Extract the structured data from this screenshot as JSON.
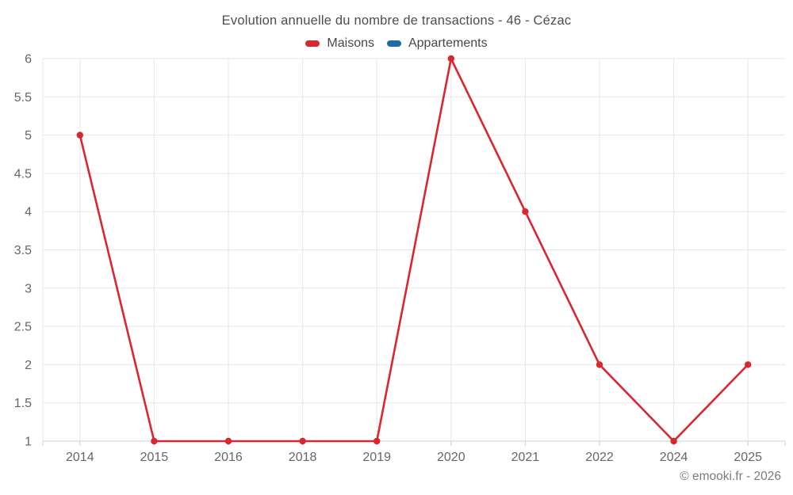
{
  "title": "Evolution annuelle du nombre de transactions - 46 - Cézac",
  "legend": [
    {
      "label": "Maisons",
      "color": "#d8272e"
    },
    {
      "label": "Appartements",
      "color": "#1c6ca5"
    }
  ],
  "footer": "© emooki.fr - 2026",
  "chart_data": {
    "type": "line",
    "categories": [
      "2014",
      "2015",
      "2016",
      "2018",
      "2019",
      "2020",
      "2021",
      "2022",
      "2024",
      "2025"
    ],
    "series": [
      {
        "name": "Maisons",
        "color": "#d8272e",
        "values": [
          5,
          1,
          1,
          1,
          1,
          6,
          4,
          2,
          1,
          2
        ]
      },
      {
        "name": "Appartements",
        "color": "#1c6ca5",
        "values": []
      }
    ],
    "title": "Evolution annuelle du nombre de transactions - 46 - Cézac",
    "xlabel": "",
    "ylabel": "",
    "ylim": [
      1,
      6
    ],
    "ytick_step": 0.5,
    "grid": true,
    "legend_position": "top",
    "marker_radius": 4.2,
    "line_width": 2.6
  },
  "colors": {
    "grid_line": "#e7e7e7",
    "axis_line": "#d0d0d0",
    "tick_label": "#666666",
    "title_text": "#4d4d4d",
    "legend_text": "#474747",
    "footer_text": "#7b7b7b",
    "background": "#ffffff"
  }
}
